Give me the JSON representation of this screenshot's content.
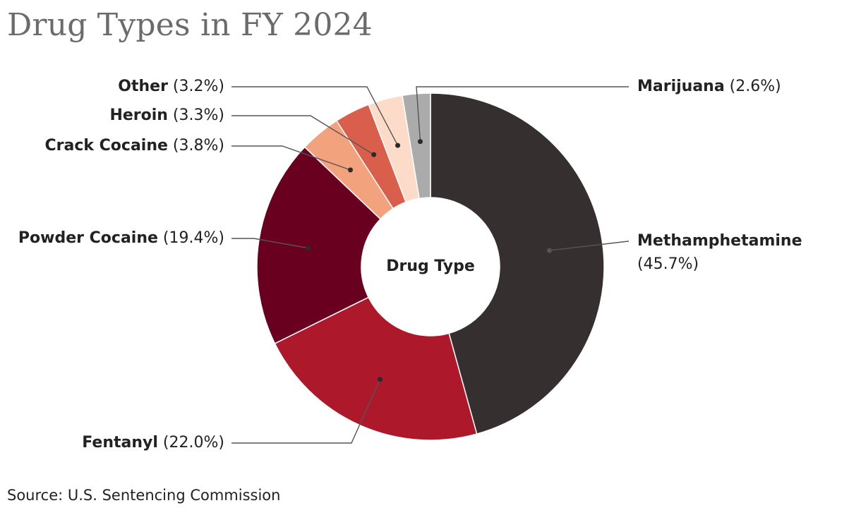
{
  "title": "Drug Types in FY 2024",
  "source": "Source: U.S. Sentencing Commission",
  "chart_data": {
    "type": "pie",
    "title": "Drug Types in FY 2024",
    "center_label": "Drug Type",
    "slices": [
      {
        "name": "Methamphetamine",
        "value": 45.7,
        "label": "(45.7%)",
        "color": "#352f30"
      },
      {
        "name": "Fentanyl",
        "value": 22.0,
        "label": "(22.0%)",
        "color": "#ad182b"
      },
      {
        "name": "Powder Cocaine",
        "value": 19.4,
        "label": "(19.4%)",
        "color": "#6a0020"
      },
      {
        "name": "Crack Cocaine",
        "value": 3.8,
        "label": "(3.8%)",
        "color": "#f2a27d"
      },
      {
        "name": "Heroin",
        "value": 3.3,
        "label": "(3.3%)",
        "color": "#d95f4c"
      },
      {
        "name": "Other",
        "value": 3.2,
        "label": "(3.2%)",
        "color": "#fcdcc9"
      },
      {
        "name": "Marijuana",
        "value": 2.6,
        "label": "(2.6%)",
        "color": "#ababab"
      }
    ]
  }
}
